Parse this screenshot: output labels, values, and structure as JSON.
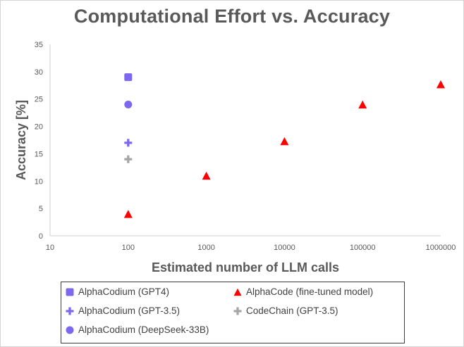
{
  "chart_data": {
    "type": "scatter",
    "title": "Computational Effort vs. Accuracy",
    "xlabel": "Estimated number of LLM calls",
    "ylabel": "Accuracy [%]",
    "xscale": "log",
    "xlim": [
      10,
      1000000
    ],
    "ylim": [
      0,
      35
    ],
    "x_ticks": [
      "10",
      "100",
      "1000",
      "10000",
      "100000",
      "1000000"
    ],
    "y_ticks": [
      "0",
      "5",
      "10",
      "15",
      "20",
      "25",
      "30",
      "35"
    ],
    "grid": false,
    "legend_position": "bottom",
    "series": [
      {
        "name": "AlphaCodium (GPT4)",
        "marker": "square",
        "color": "#7b68ee",
        "points": [
          {
            "x": 100,
            "y": 29
          }
        ]
      },
      {
        "name": "AlphaCode (fine-tuned model)",
        "marker": "triangle",
        "color": "#ff0000",
        "points": [
          {
            "x": 100,
            "y": 4
          },
          {
            "x": 1000,
            "y": 11
          },
          {
            "x": 10000,
            "y": 17.3
          },
          {
            "x": 100000,
            "y": 24
          },
          {
            "x": 1000000,
            "y": 27.7
          }
        ]
      },
      {
        "name": "AlphaCodium (GPT-3.5)",
        "marker": "plus",
        "color": "#7b68ee",
        "points": [
          {
            "x": 100,
            "y": 17
          }
        ]
      },
      {
        "name": "CodeChain (GPT-3.5)",
        "marker": "plus",
        "color": "#a6a6a6",
        "points": [
          {
            "x": 100,
            "y": 14
          }
        ]
      },
      {
        "name": "AlphaCodium (DeepSeek-33B)",
        "marker": "circle",
        "color": "#7b68ee",
        "points": [
          {
            "x": 100,
            "y": 24
          }
        ]
      }
    ]
  }
}
